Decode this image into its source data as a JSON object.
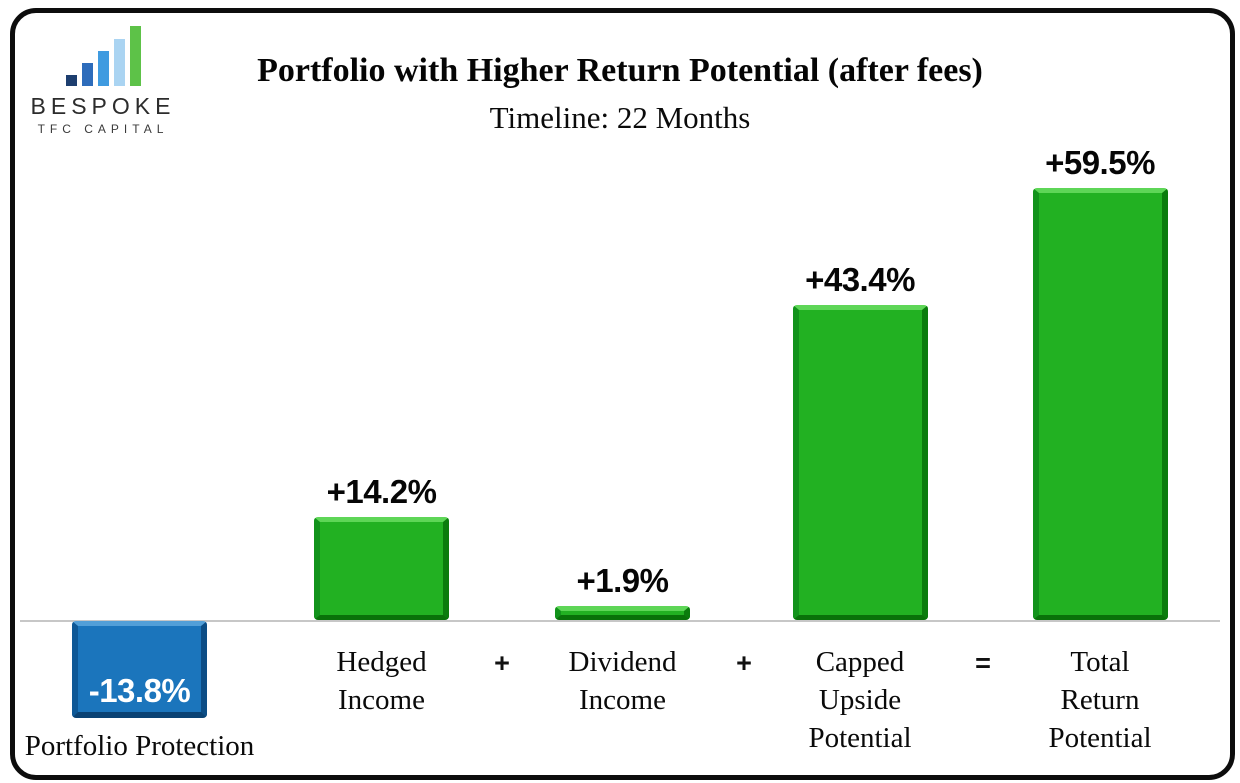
{
  "brand": {
    "name": "BESPOKE",
    "tagline": "TFC CAPITAL",
    "logo_bar_colors": [
      "#1d3e6f",
      "#2d6cbb",
      "#3f9be0",
      "#aad4f2",
      "#5dc248"
    ],
    "logo_bar_heights": [
      11,
      23,
      35,
      47,
      60
    ]
  },
  "header": {
    "title": "Portfolio with Higher Return Potential (after fees)",
    "subtitle": "Timeline: 22 Months"
  },
  "chart_data": {
    "type": "bar",
    "title": "Portfolio with Higher Return Potential (after fees)",
    "subtitle": "Timeline: 22 Months",
    "categories": [
      "Portfolio Protection",
      "Hedged Income",
      "Dividend Income",
      "Capped Upside Potential",
      "Total Return Potential"
    ],
    "display_labels": [
      "Portfolio Protection",
      "Hedged\nIncome",
      "Dividend\nIncome",
      "Capped\nUpside\nPotential",
      "Total\nReturn\nPotential"
    ],
    "values": [
      -13.8,
      14.2,
      1.9,
      43.4,
      59.5
    ],
    "value_labels": [
      "-13.8%",
      "+14.2%",
      "+1.9%",
      "+43.4%",
      "+59.5%"
    ],
    "operators": [
      "+",
      "+",
      "="
    ],
    "unit": "%",
    "baseline": 0,
    "grid": false,
    "legend": false,
    "colors": {
      "positive_fill": "#22b122",
      "positive_highlight": "#5ed657",
      "positive_left": "#12931b",
      "positive_right": "#0b7c0d",
      "positive_shadow": "#097109",
      "negative_fill": "#1b75bc",
      "negative_highlight": "#529fd8",
      "negative_left": "#0e5896",
      "negative_right": "#0c4d85",
      "negative_shadow": "#0a4273",
      "value_label_positive": "#060606",
      "value_label_negative": "#ffffff",
      "axis_line": "#c7c7c7",
      "frame_border": "#0d0d0d"
    }
  }
}
